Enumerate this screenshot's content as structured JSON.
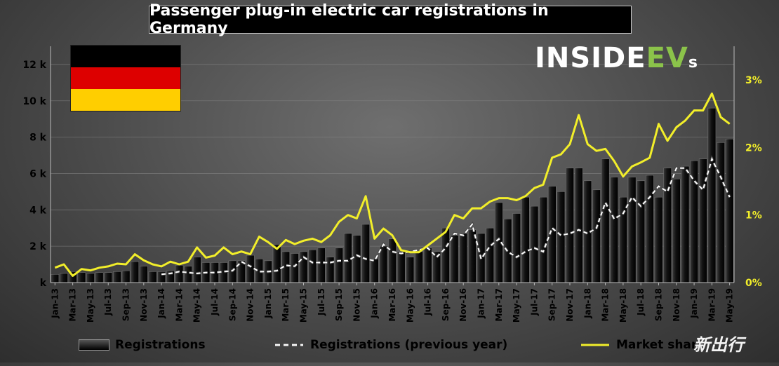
{
  "chart_data": {
    "type": "bar+line",
    "title": "Passenger plug-in electric car registrations in Germany",
    "logo": "INSIDEEVs",
    "watermark": "新出行",
    "y_left": {
      "ylim": [
        0,
        13000
      ],
      "ticks": [
        0,
        2000,
        4000,
        6000,
        8000,
        10000,
        12000
      ],
      "tick_labels": [
        "k",
        "2 k",
        "4 k",
        "6 k",
        "8 k",
        "10 k",
        "12 k"
      ]
    },
    "y_right": {
      "ylim": [
        0,
        3.5
      ],
      "ticks": [
        0,
        1,
        2,
        3
      ],
      "tick_labels": [
        "0%",
        "1%",
        "2%",
        "3%"
      ]
    },
    "months": [
      "Jan-13",
      "Feb-13",
      "Mar-13",
      "Apr-13",
      "May-13",
      "Jun-13",
      "Jul-13",
      "Aug-13",
      "Sep-13",
      "Oct-13",
      "Nov-13",
      "Dec-13",
      "Jan-14",
      "Feb-14",
      "Mar-14",
      "Apr-14",
      "May-14",
      "Jun-14",
      "Jul-14",
      "Aug-14",
      "Sep-14",
      "Oct-14",
      "Nov-14",
      "Dec-14",
      "Jan-15",
      "Feb-15",
      "Mar-15",
      "Apr-15",
      "May-15",
      "Jun-15",
      "Jul-15",
      "Aug-15",
      "Sep-15",
      "Oct-15",
      "Nov-15",
      "Dec-15",
      "Jan-16",
      "Feb-16",
      "Mar-16",
      "Apr-16",
      "May-16",
      "Jun-16",
      "Jul-16",
      "Aug-16",
      "Sep-16",
      "Oct-16",
      "Nov-16",
      "Dec-16",
      "Jan-17",
      "Feb-17",
      "Mar-17",
      "Apr-17",
      "May-17",
      "Jun-17",
      "Jul-17",
      "Aug-17",
      "Sep-17",
      "Oct-17",
      "Nov-17",
      "Dec-17",
      "Jan-18",
      "Feb-18",
      "Mar-18",
      "Apr-18",
      "May-18",
      "Jun-18",
      "Jul-18",
      "Aug-18",
      "Sep-18",
      "Oct-18",
      "Nov-18",
      "Dec-18",
      "Jan-19",
      "Feb-19",
      "Mar-19",
      "Apr-19",
      "May-19"
    ],
    "x_tick_labels": [
      "Jan-13",
      "Mar-13",
      "May-13",
      "Jul-13",
      "Sep-13",
      "Nov-13",
      "Jan-14",
      "Mar-14",
      "May-14",
      "Jul-14",
      "Sep-14",
      "Nov-14",
      "Jan-15",
      "Mar-15",
      "May-15",
      "Jul-15",
      "Sep-15",
      "Nov-15",
      "Jan-16",
      "Mar-16",
      "May-16",
      "Jul-16",
      "Sep-16",
      "Nov-16",
      "Jan-17",
      "Mar-17",
      "May-17",
      "Jul-17",
      "Sep-17",
      "Nov-17",
      "Jan-18",
      "Mar-18",
      "May-18",
      "Jul-18",
      "Sep-18",
      "Nov-18",
      "Jan-19",
      "Mar-19",
      "May-19"
    ],
    "series": [
      {
        "name": "Registrations",
        "kind": "bar",
        "values": [
          450,
          500,
          600,
          550,
          500,
          550,
          550,
          600,
          650,
          1150,
          900,
          600,
          600,
          650,
          950,
          900,
          1400,
          1100,
          1100,
          1100,
          1200,
          1200,
          1500,
          1300,
          1200,
          2100,
          1700,
          1600,
          1700,
          1800,
          1900,
          1400,
          1900,
          2700,
          2600,
          3200,
          1300,
          2000,
          2400,
          1700,
          1400,
          1700,
          1900,
          1700,
          3000,
          2600,
          2700,
          2900,
          2700,
          3000,
          4400,
          3500,
          3800,
          4700,
          4200,
          4700,
          5300,
          5000,
          6300,
          6300,
          5600,
          5100,
          6800,
          5800,
          4700,
          5800,
          5600,
          5900,
          4700,
          6300,
          5700,
          6400,
          6700,
          6800,
          9600,
          7700,
          7900
        ]
      },
      {
        "name": "Registrations (previous year)",
        "kind": "dashed-line",
        "values": [
          null,
          null,
          null,
          null,
          null,
          null,
          null,
          null,
          null,
          null,
          null,
          null,
          450,
          500,
          600,
          550,
          500,
          550,
          550,
          600,
          650,
          1150,
          900,
          600,
          600,
          650,
          950,
          900,
          1400,
          1100,
          1100,
          1100,
          1200,
          1200,
          1500,
          1300,
          1200,
          2100,
          1700,
          1600,
          1700,
          1800,
          1900,
          1400,
          1900,
          2700,
          2600,
          3200,
          1300,
          2000,
          2400,
          1700,
          1400,
          1700,
          1900,
          1700,
          3000,
          2600,
          2700,
          2900,
          2700,
          3000,
          4400,
          3500,
          3800,
          4700,
          4200,
          4700,
          5300,
          5000,
          6300,
          6300,
          5600,
          5100,
          6800,
          5800,
          4700
        ]
      },
      {
        "name": "Market share",
        "kind": "line",
        "axis": "right",
        "values": [
          0.22,
          0.27,
          0.1,
          0.2,
          0.18,
          0.22,
          0.24,
          0.28,
          0.27,
          0.42,
          0.33,
          0.27,
          0.24,
          0.31,
          0.27,
          0.31,
          0.52,
          0.37,
          0.4,
          0.52,
          0.42,
          0.46,
          0.42,
          0.68,
          0.6,
          0.5,
          0.63,
          0.57,
          0.62,
          0.65,
          0.6,
          0.7,
          0.9,
          1.0,
          0.95,
          1.28,
          0.65,
          0.8,
          0.7,
          0.48,
          0.45,
          0.45,
          0.55,
          0.65,
          0.75,
          1.0,
          0.95,
          1.1,
          1.1,
          1.2,
          1.25,
          1.25,
          1.22,
          1.28,
          1.4,
          1.45,
          1.85,
          1.9,
          2.05,
          2.48,
          2.05,
          1.95,
          1.98,
          1.8,
          1.57,
          1.72,
          1.78,
          1.85,
          2.35,
          2.1,
          2.3,
          2.4,
          2.55,
          2.55,
          2.8,
          2.45,
          2.35
        ]
      }
    ],
    "legend": [
      "Registrations",
      "Registrations (previous year)",
      "Market share"
    ],
    "legend_position": "bottom",
    "colors": {
      "bars": "#000000",
      "market_share": "#f2ee2a",
      "prev_year": "#ffffff",
      "grid": "#8a8a8a",
      "axis_text": "#000000"
    }
  }
}
